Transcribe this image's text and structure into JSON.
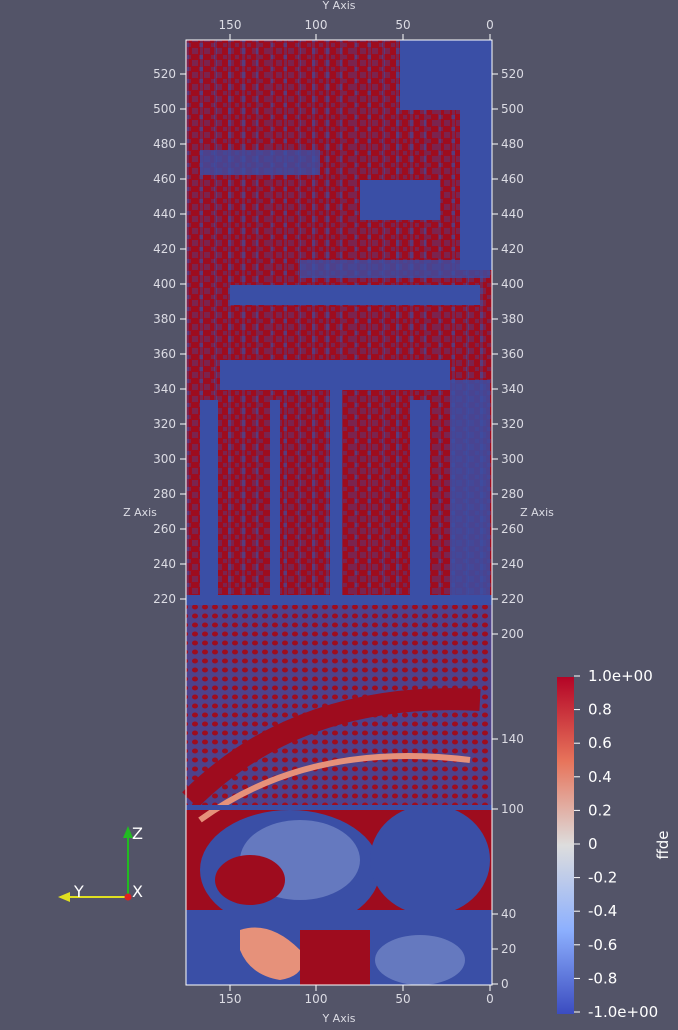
{
  "view": {
    "axes": {
      "y_axis_label": "Y Axis",
      "z_axis_label": "Z Axis",
      "y_ticks": [
        "150",
        "100",
        "50",
        "0"
      ],
      "z_ticks_left": [
        "520",
        "500",
        "480",
        "460",
        "440",
        "420",
        "400",
        "380",
        "360",
        "340",
        "320",
        "300",
        "280",
        "260",
        "240",
        "220"
      ],
      "z_ticks_right": [
        "520",
        "500",
        "480",
        "460",
        "440",
        "420",
        "400",
        "380",
        "360",
        "340",
        "320",
        "300",
        "280",
        "260",
        "240",
        "220",
        "200",
        "140",
        "100",
        "40",
        "20",
        "0"
      ]
    },
    "colorbar": {
      "title": "ffde",
      "labels": [
        "1.0e+00",
        "0.8",
        "0.6",
        "0.4",
        "0.2",
        "0",
        "-0.2",
        "-0.4",
        "-0.6",
        "-0.8",
        "-1.0e+00"
      ],
      "colors": {
        "high": "#b40426",
        "mid": "#dddddd",
        "low": "#3b4cc0"
      }
    },
    "orientation": {
      "z": "Z",
      "y": "Y",
      "x": "X"
    },
    "field": {
      "name": "ffde",
      "colors": {
        "red": "#9e0c1e",
        "blue": "#3a4fa6",
        "light_red": "#e6917a",
        "light_blue": "#8fa3d8"
      }
    }
  }
}
